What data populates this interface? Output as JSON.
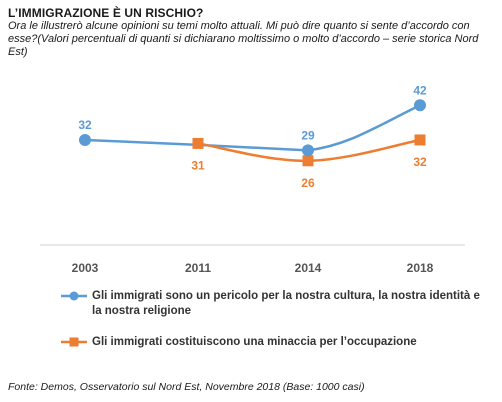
{
  "chart_data": {
    "type": "line",
    "title": "L’IMMIGRAZIONE  È UN RISCHIO?",
    "subtitle": "Ora le illustrerò alcune opinioni su temi molto attuali. Mi può dire quanto si sente d’accordo con esse?(Valori percentuali di quanti si dichiarano moltissimo o molto d’accordo – serie storica Nord Est)",
    "categories": [
      "2003",
      "2011",
      "2014",
      "2018"
    ],
    "series": [
      {
        "name": "Gli immigrati sono un pericolo per la nostra cultura, la nostra identità e la nostra religione",
        "values": [
          32,
          null,
          29,
          42
        ],
        "interpolated_value_2011": 30.6,
        "color": "#5b9bd5",
        "marker": "circle"
      },
      {
        "name": "Gli immigrati costituiscono una minaccia per l’occupazione",
        "values": [
          null,
          31,
          26,
          32
        ],
        "color": "#ed7d31",
        "marker": "square"
      }
    ],
    "xlabel": "",
    "ylabel": "",
    "ylim": [
      20,
      45
    ],
    "grid": false,
    "legend_position": "bottom"
  },
  "source": "Fonte: Demos, Osservatorio sul Nord Est, Novembre 2018 (Base: 1000 casi)"
}
